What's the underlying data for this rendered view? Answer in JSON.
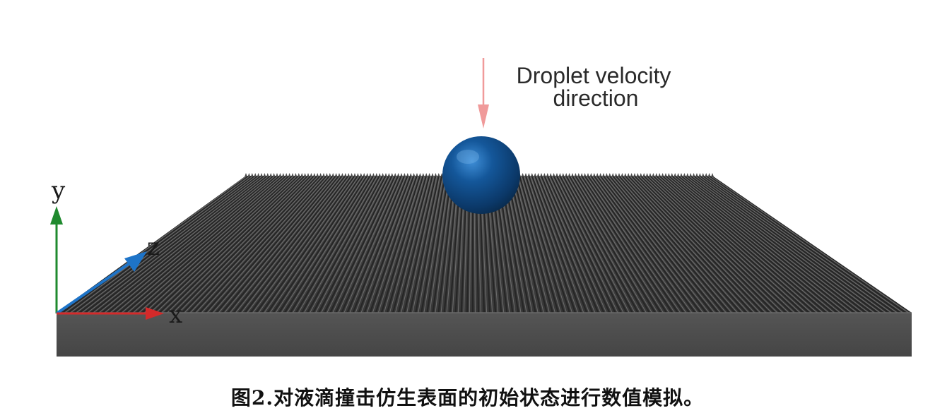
{
  "annotation": {
    "line1": "Droplet velocity",
    "line2": "direction"
  },
  "axes": {
    "x_label": "x",
    "y_label": "y",
    "z_label": "z"
  },
  "caption": "图2.对液滴撞击仿生表面的初始状态进行数值模拟。",
  "colors": {
    "surface_top": "#3a3a3a",
    "surface_side": "#4b4b4b",
    "droplet": "#0f4f8f",
    "velocity_arrow": "#f09a9a",
    "x_axis": "#d42a2a",
    "y_axis": "#1f8a2e",
    "z_axis": "#1e74c8"
  }
}
